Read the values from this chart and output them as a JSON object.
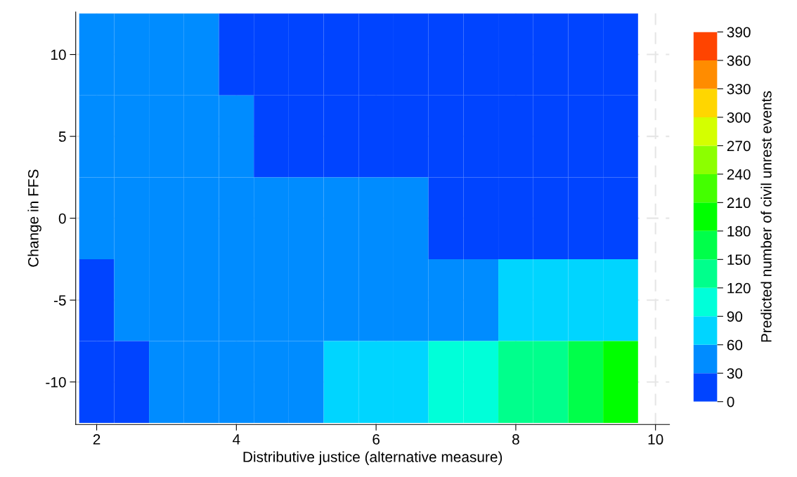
{
  "chart_data": {
    "type": "heatmap",
    "xlabel": "Distributive justice (alternative measure)",
    "ylabel": "Change in FFS",
    "clabel": "Predicted number of civil unrest events",
    "x": [
      2,
      2.5,
      3,
      3.5,
      4,
      4.5,
      5,
      5.5,
      6,
      6.5,
      7,
      7.5,
      8,
      8.5,
      9,
      9.5
    ],
    "y": [
      10,
      5,
      0,
      -5,
      -10
    ],
    "cells": [
      [
        50,
        46,
        42,
        34.5,
        27,
        18,
        12,
        7,
        3,
        2,
        1,
        0.5,
        0.5,
        0.5,
        0.5,
        0.5
      ],
      [
        45,
        42,
        38,
        35,
        31,
        26,
        21,
        14,
        7,
        5,
        4,
        3.5,
        3,
        2.5,
        2,
        2
      ],
      [
        40,
        39,
        38,
        37,
        36,
        35,
        34,
        33,
        32,
        30.5,
        29.8,
        29.5,
        29,
        28.5,
        28,
        27
      ],
      [
        28,
        30.5,
        33,
        35,
        37,
        39,
        41,
        43,
        45,
        50,
        52,
        56,
        60,
        63,
        66,
        70
      ],
      [
        15,
        22,
        30,
        36,
        42,
        48,
        54,
        60,
        70,
        80,
        92,
        105,
        120,
        140,
        161,
        184
      ]
    ],
    "clim": [
      0,
      390
    ],
    "cticks": [
      0,
      30,
      60,
      90,
      120,
      150,
      180,
      210,
      240,
      270,
      300,
      330,
      360,
      390
    ],
    "colors": [
      "#0044ff",
      "#008cff",
      "#00d5ff",
      "#00ffd9",
      "#00ff8c",
      "#00ff4a",
      "#00ff00",
      "#44ff00",
      "#8cff00",
      "#d4ff00",
      "#ffd600",
      "#ff8c00",
      "#ff4400"
    ],
    "xlim": [
      1.7,
      10.2
    ],
    "xticks": [
      2,
      4,
      6,
      8,
      10
    ],
    "ylim": [
      -12.6,
      12.6
    ],
    "yticks": [
      -10,
      -5,
      0,
      5,
      10
    ],
    "grid": true
  }
}
